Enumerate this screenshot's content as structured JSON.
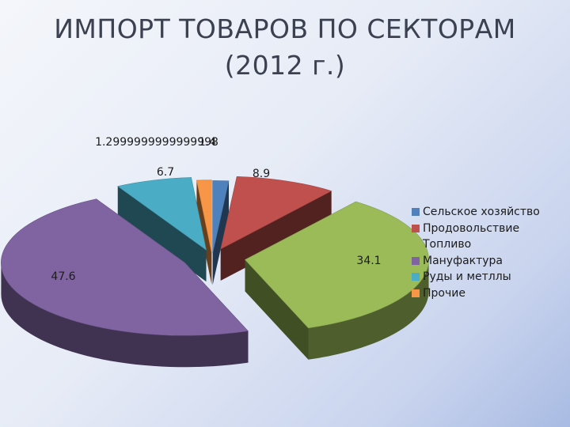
{
  "title": {
    "line1": "ИМПОРТ ТОВАРОВ ПО СЕКТОРАМ",
    "line2": "(2012 г.)"
  },
  "chart_data": {
    "type": "pie",
    "style": "3d-exploded",
    "legend_position": "right",
    "slices": [
      {
        "name": "Сельское хозяйство",
        "value": 1.4,
        "label": "1.4",
        "color": "#4f81bd"
      },
      {
        "name": "Продовольствие",
        "value": 8.9,
        "label": "8.9",
        "color": "#c0504d"
      },
      {
        "name": "Топливо",
        "value": 34.1,
        "label": "34.1",
        "color": "#9bbb59"
      },
      {
        "name": "Мануфактура",
        "value": 47.6,
        "label": "47.6",
        "color": "#8064a2"
      },
      {
        "name": "Руды и метллы",
        "value": 6.7,
        "label": "6.7",
        "color": "#4bacc6"
      },
      {
        "name": "Прочие",
        "value": 1.3,
        "label": "1.2999999999999998",
        "color": "#f79646"
      }
    ]
  }
}
